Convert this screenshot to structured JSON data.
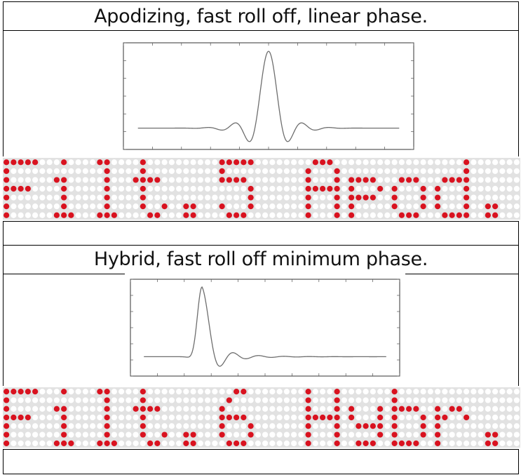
{
  "sections": [
    {
      "caption": "Apodizing, fast roll off, linear phase.",
      "impulse_type": "linear-phase",
      "display_text": "Filt.5 Apod."
    },
    {
      "caption": "Hybrid, fast roll off minimum phase.",
      "impulse_type": "minimum-phase",
      "display_text": "Filt.6 Hybr."
    }
  ],
  "colors": {
    "led_on": "#d9121f",
    "led_off": "#ffffff",
    "led_bg": "#e2e2e2",
    "trace": "#6e6e6e"
  }
}
